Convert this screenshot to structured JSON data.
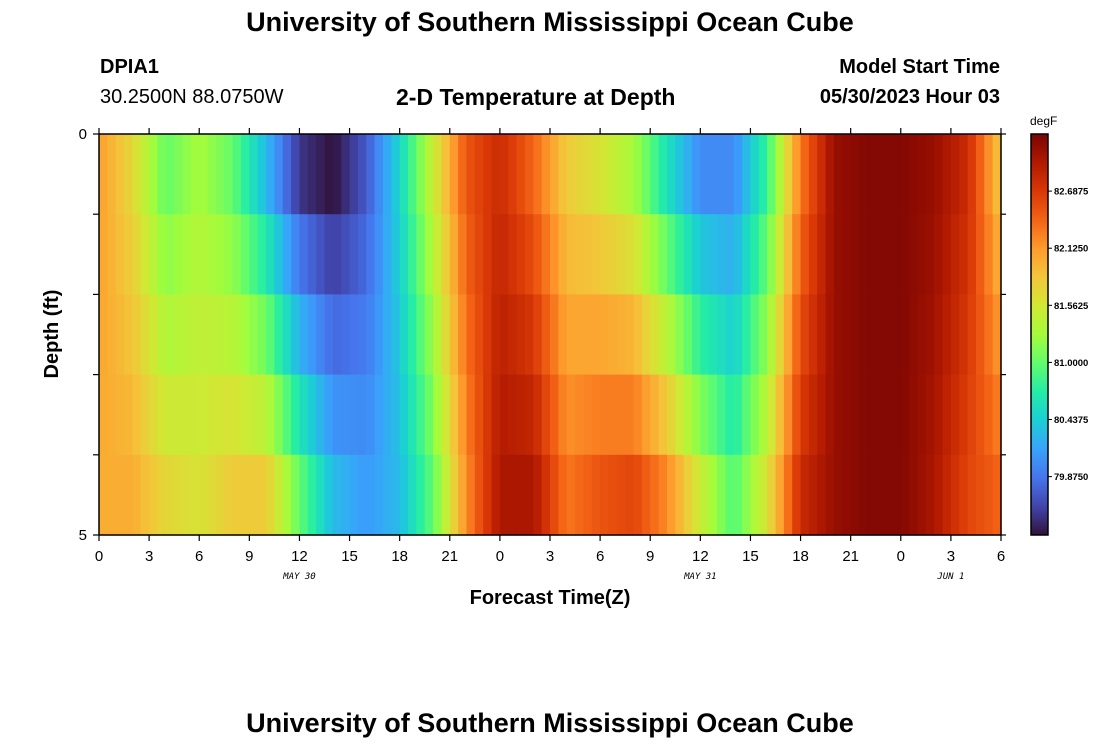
{
  "header": {
    "title": "University of Southern Mississippi Ocean Cube",
    "station": "DPIA1",
    "coords": "30.2500N  88.0750W",
    "model_start_label": "Model Start Time",
    "model_start_value": "05/30/2023 Hour 03"
  },
  "footer": {
    "title": "University of Southern Mississippi Ocean Cube"
  },
  "colors": {
    "colormap": [
      "#30123b",
      "#4145ab",
      "#4675ed",
      "#39a2fc",
      "#1bcfd4",
      "#24eca6",
      "#61fc6c",
      "#a4fc3b",
      "#d1e834",
      "#f3c63a",
      "#fe9b2d",
      "#f36315",
      "#d93806",
      "#b11901",
      "#7a0403"
    ]
  },
  "chart_data": {
    "type": "heatmap",
    "title": "2-D Temperature at Depth",
    "xlabel": "Forecast Time(Z)",
    "ylabel": "Depth (ft)",
    "colorbar_label": "degF",
    "zlim": [
      79.3,
      83.25
    ],
    "colorbar_ticks": [
      "82.6875",
      "82.1250",
      "81.5625",
      "81.0000",
      "80.4375",
      "79.8750"
    ],
    "colorbar_tick_values": [
      82.6875,
      82.125,
      81.5625,
      81.0,
      80.4375,
      79.875
    ],
    "x_tick_labels": [
      "0",
      "3",
      "6",
      "9",
      "12",
      "15",
      "18",
      "21",
      "0",
      "3",
      "6",
      "9",
      "12",
      "15",
      "18",
      "21",
      "0",
      "3",
      "6"
    ],
    "x_tick_hours": [
      0,
      3,
      6,
      9,
      12,
      15,
      18,
      21,
      24,
      27,
      30,
      33,
      36,
      39,
      42,
      45,
      48,
      51,
      54
    ],
    "xlim_hours": [
      0,
      54
    ],
    "date_labels": [
      {
        "text": "MAY 30",
        "hour": 12
      },
      {
        "text": "MAY 31",
        "hour": 36
      },
      {
        "text": "JUN 1",
        "hour": 51
      }
    ],
    "y_tick_labels": [
      "0",
      "5"
    ],
    "ylim": [
      0,
      5
    ],
    "depth_levels": [
      0,
      1,
      2,
      3,
      4,
      5
    ],
    "time_profile_hours": [
      0,
      2,
      4,
      6,
      8,
      10,
      12,
      14,
      16,
      18,
      20,
      22,
      24,
      26,
      28,
      30,
      32,
      34,
      36,
      38,
      40,
      42,
      44,
      46,
      48,
      50,
      52,
      54
    ],
    "time_profile_surface": [
      82.1,
      81.7,
      81.0,
      81.3,
      81.0,
      80.3,
      79.5,
      79.3,
      79.7,
      80.5,
      81.5,
      82.5,
      82.8,
      82.4,
      81.8,
      81.6,
      81.3,
      80.6,
      80.0,
      80.0,
      80.8,
      82.3,
      83.1,
      83.2,
      83.2,
      83.1,
      82.8,
      81.8
    ],
    "time_profile_bottom": [
      82.0,
      82.0,
      81.7,
      81.6,
      81.8,
      81.8,
      81.0,
      80.3,
      80.1,
      80.3,
      81.0,
      82.2,
      83.0,
      83.0,
      82.3,
      82.5,
      82.6,
      82.2,
      81.5,
      80.9,
      81.6,
      82.8,
      83.1,
      83.2,
      83.2,
      83.0,
      82.6,
      82.4
    ]
  }
}
